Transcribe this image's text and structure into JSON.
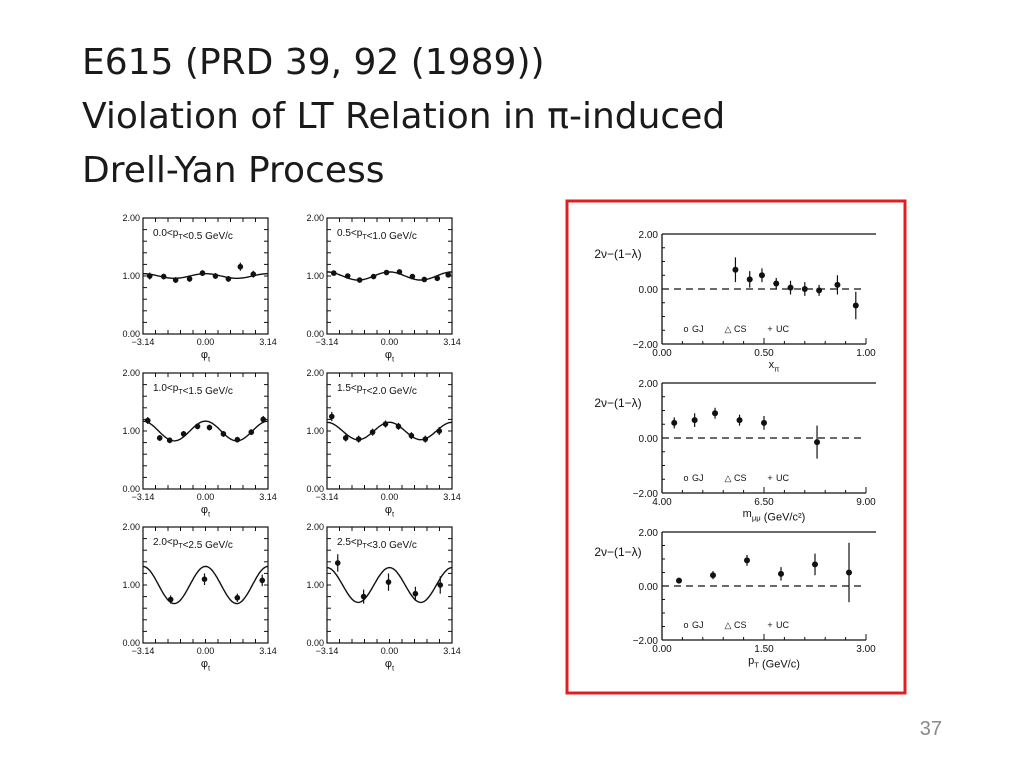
{
  "slide": {
    "title_lines": [
      "E615 (PRD 39, 92 (1989))",
      "Violation of LT Relation in π-induced",
      "Drell-Yan Process"
    ],
    "slide_number": "37",
    "highlight_color": "#e02020"
  },
  "chart_data": [
    {
      "type": "scatter",
      "panel": "phi-1",
      "title": "0.0<p_T<0.5 GeV/c",
      "xlabel": "φ_t",
      "xticks": [
        "-3.14",
        "0.00",
        "3.14"
      ],
      "yticks": [
        "0.00",
        "1.00",
        "2.00"
      ],
      "xlim": [
        -3.14,
        3.14
      ],
      "ylim": [
        0,
        2
      ],
      "x": [
        -2.8,
        -2.1,
        -1.5,
        -0.8,
        -0.15,
        0.5,
        1.15,
        1.75,
        2.4
      ],
      "y": [
        1.0,
        0.99,
        0.93,
        0.95,
        1.05,
        1.0,
        0.95,
        1.16,
        1.03
      ],
      "err": [
        0.06,
        0.05,
        0.05,
        0.05,
        0.05,
        0.05,
        0.05,
        0.07,
        0.06
      ],
      "fit": {
        "a": 1.0,
        "b": 0.04
      }
    },
    {
      "type": "scatter",
      "panel": "phi-2",
      "title": "0.5<p_T<1.0 GeV/c",
      "xlabel": "φ_t",
      "xticks": [
        "-3.14",
        "0.00",
        "3.14"
      ],
      "yticks": [
        "0.00",
        "1.00",
        "2.00"
      ],
      "xlim": [
        -3.14,
        3.14
      ],
      "ylim": [
        0,
        2
      ],
      "x": [
        -2.8,
        -2.1,
        -1.5,
        -0.8,
        -0.15,
        0.5,
        1.15,
        1.75,
        2.4,
        2.95
      ],
      "y": [
        1.05,
        1.0,
        0.93,
        0.99,
        1.06,
        1.07,
        0.99,
        0.94,
        0.96,
        1.02
      ],
      "err": [
        0.04,
        0.04,
        0.04,
        0.04,
        0.04,
        0.04,
        0.04,
        0.04,
        0.04,
        0.04
      ],
      "fit": {
        "a": 1.0,
        "b": 0.07
      }
    },
    {
      "type": "scatter",
      "panel": "phi-3",
      "title": "1.0<p_T<1.5 GeV/c",
      "xlabel": "φ_t",
      "xticks": [
        "-3.14",
        "0.00",
        "3.14"
      ],
      "yticks": [
        "0.00",
        "1.00",
        "2.00"
      ],
      "xlim": [
        -3.14,
        3.14
      ],
      "ylim": [
        0,
        2
      ],
      "x": [
        -2.9,
        -2.3,
        -1.8,
        -1.1,
        -0.4,
        0.2,
        0.9,
        1.6,
        2.3,
        2.9
      ],
      "y": [
        1.18,
        0.88,
        0.84,
        0.95,
        1.08,
        1.06,
        0.95,
        0.85,
        0.98,
        1.2
      ],
      "err": [
        0.06,
        0.05,
        0.05,
        0.05,
        0.05,
        0.05,
        0.05,
        0.05,
        0.05,
        0.06
      ],
      "fit": {
        "a": 1.0,
        "b": 0.17
      }
    },
    {
      "type": "scatter",
      "panel": "phi-4",
      "title": "1.5<p_T<2.0 GeV/c",
      "xlabel": "φ_t",
      "xticks": [
        "-3.14",
        "0.00",
        "3.14"
      ],
      "yticks": [
        "0.00",
        "1.00",
        "2.00"
      ],
      "xlim": [
        -3.14,
        3.14
      ],
      "ylim": [
        0,
        2
      ],
      "x": [
        -2.9,
        -2.2,
        -1.55,
        -0.85,
        -0.2,
        0.45,
        1.1,
        1.8,
        2.5
      ],
      "y": [
        1.25,
        0.88,
        0.86,
        0.98,
        1.12,
        1.08,
        0.92,
        0.86,
        1.0
      ],
      "err": [
        0.08,
        0.06,
        0.06,
        0.06,
        0.06,
        0.06,
        0.06,
        0.06,
        0.07
      ],
      "fit": {
        "a": 1.0,
        "b": 0.15
      }
    },
    {
      "type": "scatter",
      "panel": "phi-5",
      "title": "2.0<p_T<2.5 GeV/c",
      "xlabel": "φ_t",
      "xticks": [
        "-3.14",
        "0.00",
        "3.14"
      ],
      "yticks": [
        "0.00",
        "1.00",
        "2.00"
      ],
      "xlim": [
        -3.14,
        3.14
      ],
      "ylim": [
        0,
        2
      ],
      "x": [
        -1.75,
        -0.05,
        1.6,
        2.85
      ],
      "y": [
        0.75,
        1.1,
        0.78,
        1.08
      ],
      "err": [
        0.07,
        0.1,
        0.07,
        0.1
      ],
      "fit": {
        "a": 1.0,
        "b": 0.32
      }
    },
    {
      "type": "scatter",
      "panel": "phi-6",
      "title": "2.5<p_T<3.0 GeV/c",
      "xlabel": "φ_t",
      "xticks": [
        "-3.14",
        "0.00",
        "3.14"
      ],
      "yticks": [
        "0.00",
        "1.00",
        "2.00"
      ],
      "xlim": [
        -3.14,
        3.14
      ],
      "ylim": [
        0,
        2
      ],
      "x": [
        -2.6,
        -1.3,
        -0.05,
        1.3,
        2.55
      ],
      "y": [
        1.38,
        0.8,
        1.05,
        0.85,
        1.0
      ],
      "err": [
        0.15,
        0.12,
        0.15,
        0.12,
        0.15
      ],
      "fit": {
        "a": 1.0,
        "b": 0.3
      }
    },
    {
      "type": "scatter",
      "panel": "lt-1",
      "ylabel": "2ν−(1−λ)",
      "xlabel": "x_π",
      "xticks": [
        "0.00",
        "0.50",
        "1.00"
      ],
      "yticks": [
        "-2.00",
        "0.00",
        "2.00"
      ],
      "xlim": [
        0,
        1
      ],
      "ylim": [
        -2,
        2
      ],
      "reference_line": 0,
      "legend": [
        "GJ",
        "CS",
        "UC"
      ],
      "x": [
        0.36,
        0.43,
        0.49,
        0.56,
        0.63,
        0.7,
        0.77,
        0.86,
        0.95
      ],
      "y": [
        0.7,
        0.35,
        0.5,
        0.2,
        0.05,
        0.0,
        -0.05,
        0.15,
        -0.6
      ],
      "err": [
        0.45,
        0.3,
        0.25,
        0.2,
        0.25,
        0.25,
        0.2,
        0.35,
        0.5
      ]
    },
    {
      "type": "scatter",
      "panel": "lt-2",
      "ylabel": "2ν−(1−λ)",
      "xlabel": "m_μμ (GeV/c²)",
      "xticks": [
        "4.00",
        "6.50",
        "9.00"
      ],
      "yticks": [
        "-2.00",
        "0.00",
        "2.00"
      ],
      "xlim": [
        4,
        9
      ],
      "ylim": [
        -2,
        2
      ],
      "reference_line": 0,
      "legend": [
        "GJ",
        "CS",
        "UC"
      ],
      "x": [
        4.3,
        4.8,
        5.3,
        5.9,
        6.5,
        7.8
      ],
      "y": [
        0.55,
        0.65,
        0.9,
        0.65,
        0.55,
        -0.15
      ],
      "err": [
        0.2,
        0.25,
        0.2,
        0.2,
        0.25,
        0.6
      ]
    },
    {
      "type": "scatter",
      "panel": "lt-3",
      "ylabel": "2ν−(1−λ)",
      "xlabel": "p_T (GeV/c)",
      "xticks": [
        "0.00",
        "1.50",
        "3.00"
      ],
      "yticks": [
        "-2.00",
        "0.00",
        "2.00"
      ],
      "xlim": [
        0,
        3
      ],
      "ylim": [
        -2,
        2
      ],
      "reference_line": 0,
      "legend": [
        "GJ",
        "CS",
        "UC"
      ],
      "x": [
        0.25,
        0.75,
        1.25,
        1.75,
        2.25,
        2.75
      ],
      "y": [
        0.2,
        0.4,
        0.95,
        0.45,
        0.8,
        0.5
      ],
      "err": [
        0.1,
        0.15,
        0.2,
        0.25,
        0.4,
        1.1
      ]
    }
  ]
}
